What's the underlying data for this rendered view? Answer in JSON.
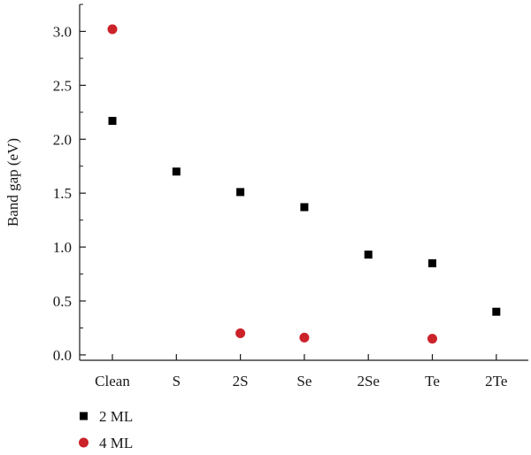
{
  "chart_data": {
    "type": "scatter",
    "categories": [
      "Clean",
      "S",
      "2S",
      "Se",
      "2Se",
      "Te",
      "2Te"
    ],
    "ylabel": "Band gap (eV)",
    "xlabel": "",
    "ylim": [
      -0.05,
      3.25
    ],
    "yticks": [
      0.0,
      0.5,
      1.0,
      1.5,
      2.0,
      2.5,
      3.0
    ],
    "ytick_labels": [
      "0.0",
      "0.5",
      "1.0",
      "1.5",
      "2.0",
      "2.5",
      "3.0"
    ],
    "grid": false,
    "legend_position": "bottom-left",
    "series": [
      {
        "name": "2 ML",
        "marker": "square",
        "color": "#000000",
        "values": [
          2.17,
          1.7,
          1.51,
          1.37,
          0.93,
          0.85,
          0.4
        ]
      },
      {
        "name": "4 ML",
        "marker": "circle",
        "color": "#cc2229",
        "values": [
          3.02,
          null,
          0.2,
          0.16,
          null,
          0.15,
          null
        ]
      }
    ]
  }
}
